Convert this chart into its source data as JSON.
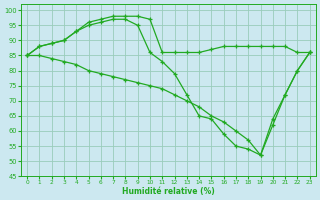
{
  "xlabel": "Humidité relative (%)",
  "background_color": "#cce8f0",
  "grid_color": "#99ccbb",
  "line_color": "#22aa22",
  "x": [
    0,
    1,
    2,
    3,
    4,
    5,
    6,
    7,
    8,
    9,
    10,
    11,
    12,
    13,
    14,
    15,
    16,
    17,
    18,
    19,
    20,
    21,
    22,
    23
  ],
  "series": [
    [
      85,
      88,
      89,
      90,
      93,
      96,
      97,
      98,
      98,
      98,
      97,
      86,
      86,
      86,
      86,
      87,
      88,
      88,
      88,
      88,
      88,
      88,
      86,
      86
    ],
    [
      85,
      88,
      89,
      90,
      93,
      95,
      96,
      97,
      97,
      95,
      86,
      83,
      79,
      72,
      65,
      64,
      59,
      55,
      54,
      52,
      64,
      72,
      80,
      86
    ],
    [
      85,
      85,
      84,
      83,
      82,
      80,
      79,
      78,
      77,
      76,
      75,
      74,
      72,
      70,
      68,
      65,
      63,
      60,
      57,
      52,
      62,
      72,
      80,
      86
    ]
  ],
  "ylim": [
    45,
    102
  ],
  "yticks": [
    45,
    50,
    55,
    60,
    65,
    70,
    75,
    80,
    85,
    90,
    95,
    100
  ],
  "xticks": [
    0,
    1,
    2,
    3,
    4,
    5,
    6,
    7,
    8,
    9,
    10,
    11,
    12,
    13,
    14,
    15,
    16,
    17,
    18,
    19,
    20,
    21,
    22,
    23
  ],
  "marker": "+",
  "markersize": 3.5,
  "linewidth": 0.9
}
